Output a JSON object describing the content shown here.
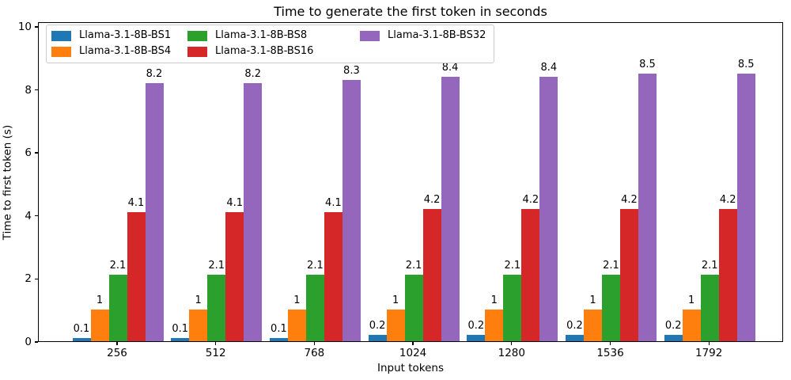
{
  "chart_data": {
    "type": "bar",
    "title": "Time to generate the first token in seconds",
    "xlabel": "Input tokens",
    "ylabel": "Time to first token (s)",
    "categories": [
      "256",
      "512",
      "768",
      "1024",
      "1280",
      "1536",
      "1792"
    ],
    "yticks": [
      "0",
      "2",
      "4",
      "6",
      "8",
      "10"
    ],
    "ylim": [
      0,
      10.15
    ],
    "grid": false,
    "legend_position": "upper-left-inside",
    "legend_columns": 3,
    "series": [
      {
        "name": "Llama-3.1-8B-BS1",
        "color": "#1f77b4",
        "values": [
          0.1,
          0.1,
          0.1,
          0.2,
          0.2,
          0.2,
          0.2
        ],
        "labels": [
          "0.1",
          "0.1",
          "0.1",
          "0.2",
          "0.2",
          "0.2",
          "0.2"
        ]
      },
      {
        "name": "Llama-3.1-8B-BS4",
        "color": "#ff7f0e",
        "values": [
          1,
          1,
          1,
          1,
          1,
          1,
          1
        ],
        "labels": [
          "1",
          "1",
          "1",
          "1",
          "1",
          "1",
          "1"
        ]
      },
      {
        "name": "Llama-3.1-8B-BS8",
        "color": "#2ca02c",
        "values": [
          2.1,
          2.1,
          2.1,
          2.1,
          2.1,
          2.1,
          2.1
        ],
        "labels": [
          "2.1",
          "2.1",
          "2.1",
          "2.1",
          "2.1",
          "2.1",
          "2.1"
        ]
      },
      {
        "name": "Llama-3.1-8B-BS16",
        "color": "#d62728",
        "values": [
          4.1,
          4.1,
          4.1,
          4.2,
          4.2,
          4.2,
          4.2
        ],
        "labels": [
          "4.1",
          "4.1",
          "4.1",
          "4.2",
          "4.2",
          "4.2",
          "4.2"
        ]
      },
      {
        "name": "Llama-3.1-8B-BS32",
        "color": "#9467bd",
        "values": [
          8.2,
          8.2,
          8.3,
          8.4,
          8.4,
          8.5,
          8.5
        ],
        "labels": [
          "8.2",
          "8.2",
          "8.3",
          "8.4",
          "8.4",
          "8.5",
          "8.5"
        ]
      }
    ]
  }
}
